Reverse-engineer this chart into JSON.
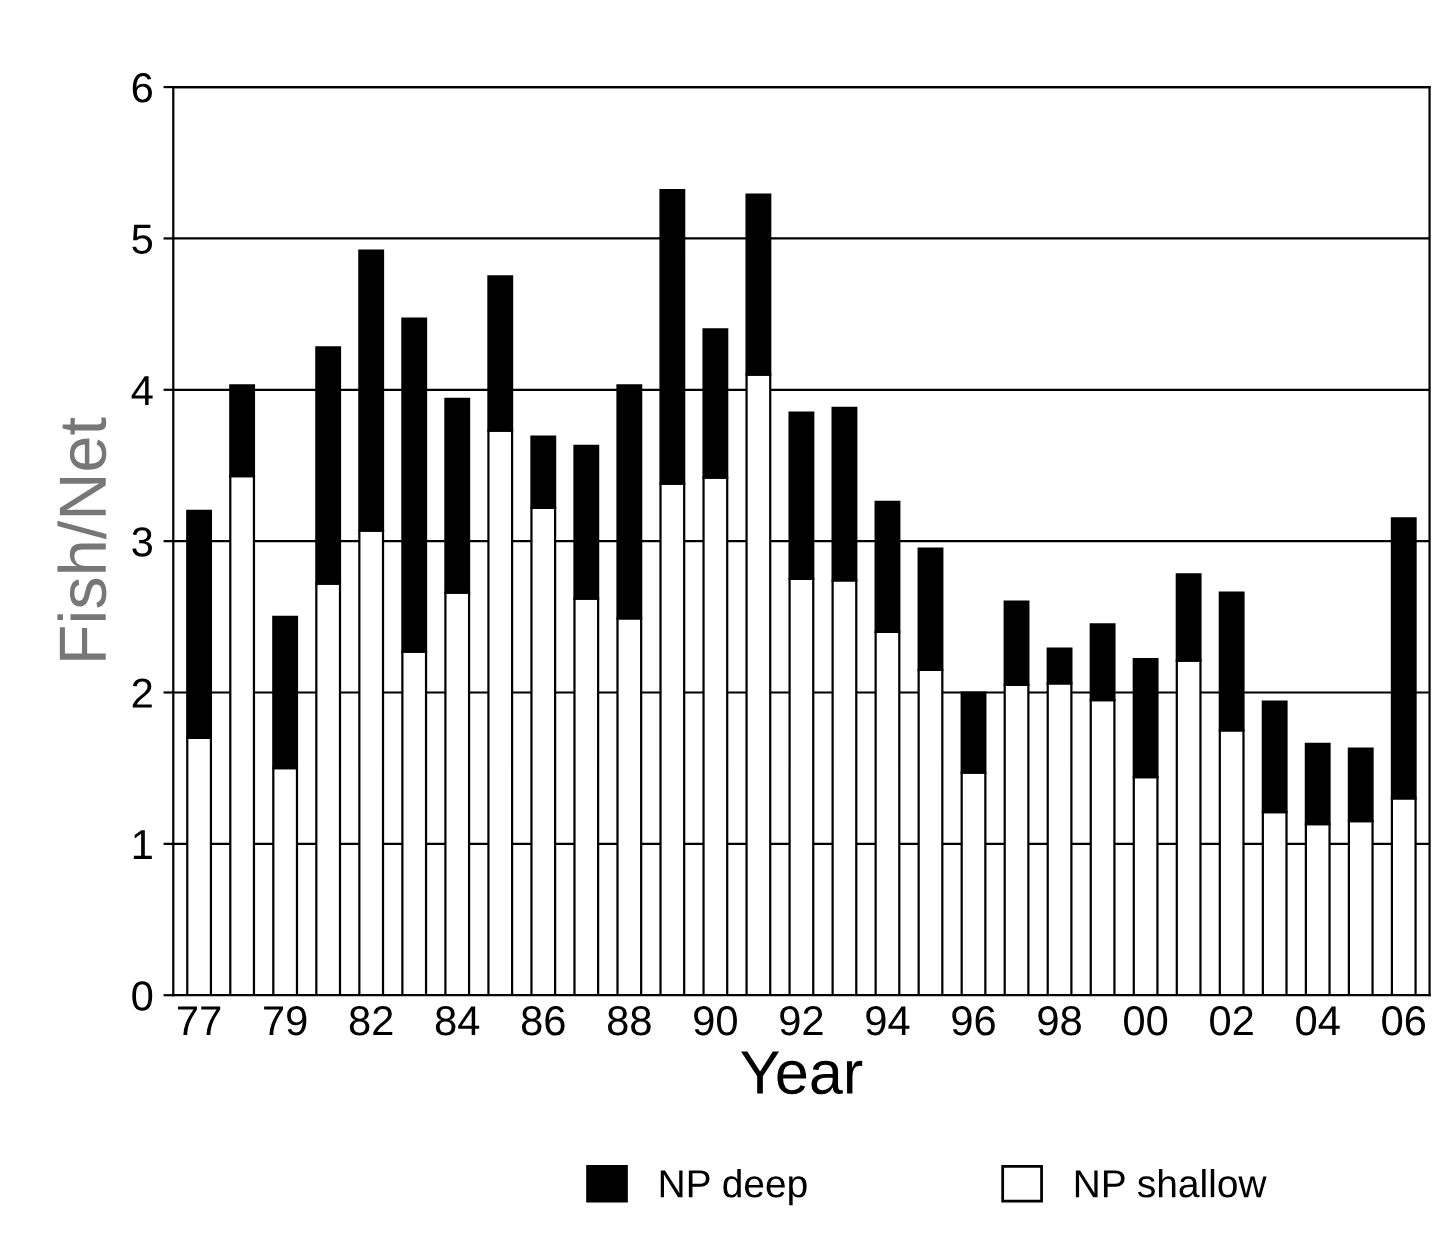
{
  "chart_data": {
    "type": "bar",
    "stacked": true,
    "xlabel": "Year",
    "ylabel": "Fish/Net",
    "categories": [
      "77",
      null,
      "79",
      null,
      "82",
      null,
      "84",
      null,
      "86",
      null,
      "88",
      null,
      "90",
      null,
      "92",
      null,
      "94",
      null,
      "96",
      null,
      "98",
      null,
      "00",
      null,
      "02",
      null,
      "04",
      null,
      "06"
    ],
    "series": [
      {
        "name": "NP shallow",
        "color": "#ffffff",
        "values": [
          1.7,
          3.43,
          1.5,
          2.72,
          3.07,
          2.27,
          2.66,
          3.73,
          3.22,
          2.62,
          2.49,
          3.38,
          3.42,
          4.1,
          2.75,
          2.74,
          2.4,
          2.15,
          1.47,
          2.05,
          2.06,
          1.95,
          1.44,
          2.21,
          1.75,
          1.21,
          1.13,
          1.15,
          1.3
        ]
      },
      {
        "name": "NP deep",
        "color": "#000000",
        "values": [
          1.5,
          0.6,
          1.0,
          1.56,
          1.85,
          2.2,
          1.28,
          1.02,
          0.47,
          1.01,
          1.54,
          1.94,
          0.98,
          1.19,
          1.1,
          1.14,
          0.86,
          0.8,
          0.53,
          0.55,
          0.23,
          0.5,
          0.78,
          0.57,
          0.91,
          0.73,
          0.53,
          0.48,
          1.85
        ]
      }
    ],
    "ylim": [
      0,
      6
    ],
    "yticks": [
      0,
      1,
      2,
      3,
      4,
      5,
      6
    ],
    "grid": "y",
    "legend": "bottom"
  }
}
